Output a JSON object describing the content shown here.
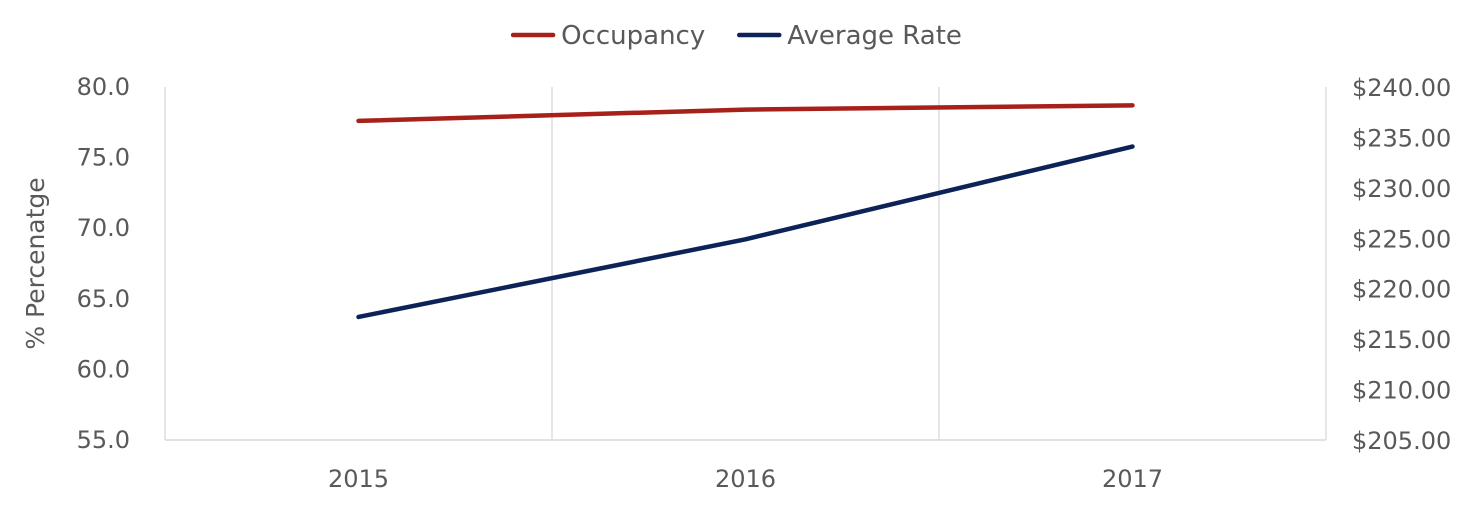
{
  "chart_data": {
    "type": "line",
    "categories": [
      "2015",
      "2016",
      "2017"
    ],
    "series": [
      {
        "name": "Occupancy",
        "axis": "left",
        "color": "#A8201A",
        "values": [
          77.6,
          78.4,
          78.7
        ]
      },
      {
        "name": "Average Rate",
        "axis": "right",
        "color": "#0D2358",
        "values": [
          217.2,
          224.9,
          234.1
        ]
      }
    ],
    "y_left": {
      "label": "% Percenatge",
      "range": [
        55,
        80
      ],
      "ticks": [
        55,
        60,
        65,
        70,
        75,
        80
      ],
      "tick_labels": [
        "55.0",
        "60.0",
        "65.0",
        "70.0",
        "75.0",
        "80.0"
      ]
    },
    "y_right": {
      "label": "",
      "range": [
        205,
        240
      ],
      "ticks": [
        205,
        210,
        215,
        220,
        225,
        230,
        235,
        240
      ],
      "tick_labels": [
        "$205.00",
        "$210.00",
        "$215.00",
        "$220.00",
        "$225.00",
        "$230.00",
        "$235.00",
        "$240.00"
      ]
    },
    "grid": "vertical",
    "legend_position": "top-center"
  }
}
